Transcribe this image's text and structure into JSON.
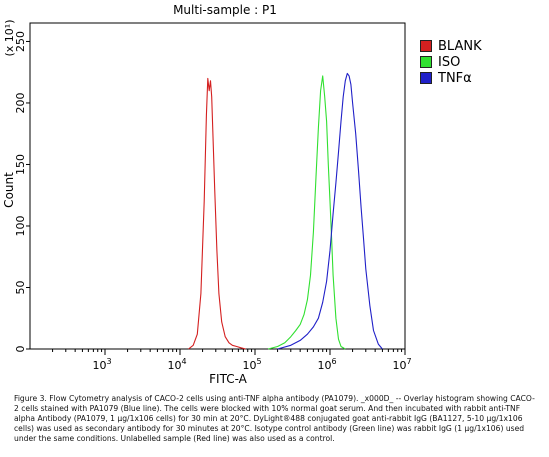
{
  "chart_data": {
    "type": "line",
    "title": "Multi-sample : P1",
    "xlabel": "FITC-A",
    "ylabel": "Count",
    "y_multiplier": "(x 10¹)",
    "x_scale": "log",
    "xlim": [
      100,
      10000000
    ],
    "ylim": [
      0,
      265
    ],
    "x_ticks": [
      {
        "value": 1000,
        "base": "10",
        "exp": "3"
      },
      {
        "value": 10000,
        "base": "10",
        "exp": "4"
      },
      {
        "value": 100000,
        "base": "10",
        "exp": "5"
      },
      {
        "value": 1000000,
        "base": "10",
        "exp": "6"
      },
      {
        "value": 10000000,
        "base": "10",
        "exp": "7"
      }
    ],
    "y_ticks": [
      0,
      50,
      100,
      150,
      200,
      250
    ],
    "grid": false,
    "legend_position": "right",
    "series": [
      {
        "name": "BLANK",
        "color": "#d42020",
        "x": [
          13000,
          15000,
          17000,
          19000,
          21000,
          22500,
          23500,
          24500,
          25500,
          26500,
          27500,
          29000,
          31000,
          33000,
          36000,
          40000,
          45000,
          50000,
          57000,
          65000,
          75000
        ],
        "y": [
          0,
          3,
          12,
          45,
          120,
          190,
          220,
          210,
          218,
          205,
          175,
          130,
          80,
          45,
          22,
          10,
          5,
          3,
          2,
          1,
          0
        ]
      },
      {
        "name": "ISO",
        "color": "#30e030",
        "x": [
          150000,
          200000,
          250000,
          300000,
          350000,
          400000,
          450000,
          500000,
          550000,
          600000,
          650000,
          700000,
          750000,
          800000,
          850000,
          900000,
          950000,
          1000000,
          1050000,
          1100000,
          1200000,
          1300000,
          1400000,
          1600000
        ],
        "y": [
          0,
          2,
          5,
          10,
          15,
          20,
          28,
          40,
          60,
          95,
          140,
          180,
          210,
          222,
          205,
          185,
          150,
          120,
          90,
          60,
          25,
          8,
          2,
          0
        ]
      },
      {
        "name": "TNFα",
        "color": "#2020c8",
        "x": [
          200000,
          300000,
          400000,
          500000,
          600000,
          700000,
          800000,
          900000,
          1000000,
          1100000,
          1200000,
          1300000,
          1400000,
          1500000,
          1600000,
          1700000,
          1800000,
          1900000,
          2000000,
          2200000,
          2400000,
          2600000,
          2800000,
          3000000,
          3400000,
          3800000,
          4400000,
          5000000
        ],
        "y": [
          0,
          3,
          7,
          12,
          18,
          25,
          38,
          55,
          80,
          110,
          135,
          160,
          185,
          205,
          218,
          224,
          222,
          215,
          200,
          175,
          145,
          115,
          90,
          65,
          35,
          15,
          4,
          0
        ]
      }
    ]
  },
  "caption": "Figure 3. Flow Cytometry analysis of CACO-2 cells using anti-TNF alpha antibody (PA1079). _x000D_ -- Overlay histogram showing CACO-2 cells stained with PA1079 (Blue line). The cells were blocked with 10% normal goat serum. And then incubated with rabbit anti-TNF alpha Antibody (PA1079, 1 µg/1x106 cells) for 30 min at 20°C. DyLight®488 conjugated goat anti-rabbit IgG (BA1127, 5-10 µg/1x106 cells) was used as secondary antibody for 30 minutes at 20°C. Isotype control antibody (Green line) was rabbit IgG (1 µg/1x106) used under the same conditions. Unlabelled sample (Red line) was also used as a control."
}
